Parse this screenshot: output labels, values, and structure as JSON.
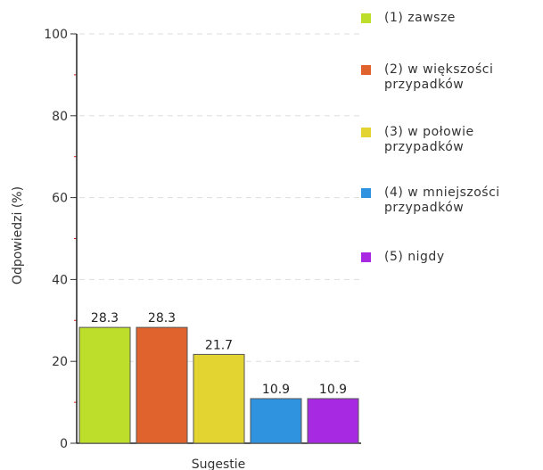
{
  "chart_data": {
    "type": "bar",
    "categories": [
      "Sugestie"
    ],
    "series": [
      {
        "name": "(1) zawsze",
        "values": [
          28.3
        ],
        "color": "#bede2c"
      },
      {
        "name": "(2) w większości przypadków",
        "values": [
          28.3
        ],
        "color": "#e0622d"
      },
      {
        "name": "(3) w połowie przypadków",
        "values": [
          21.7
        ],
        "color": "#e4d431"
      },
      {
        "name": "(4) w mniejszości przypadków",
        "values": [
          10.9
        ],
        "color": "#2f93e0"
      },
      {
        "name": "(5) nigdy",
        "values": [
          10.9
        ],
        "color": "#a72ae2"
      }
    ],
    "data_labels": [
      "28.3",
      "28.3",
      "21.7",
      "10.9",
      "10.9"
    ],
    "xlabel": "Sugestie",
    "ylabel": "Odpowiedzi (%)",
    "ylim": [
      0,
      100
    ],
    "yticks": [
      0,
      20,
      40,
      60,
      80,
      100
    ],
    "grid": true,
    "legend_position": "right"
  }
}
